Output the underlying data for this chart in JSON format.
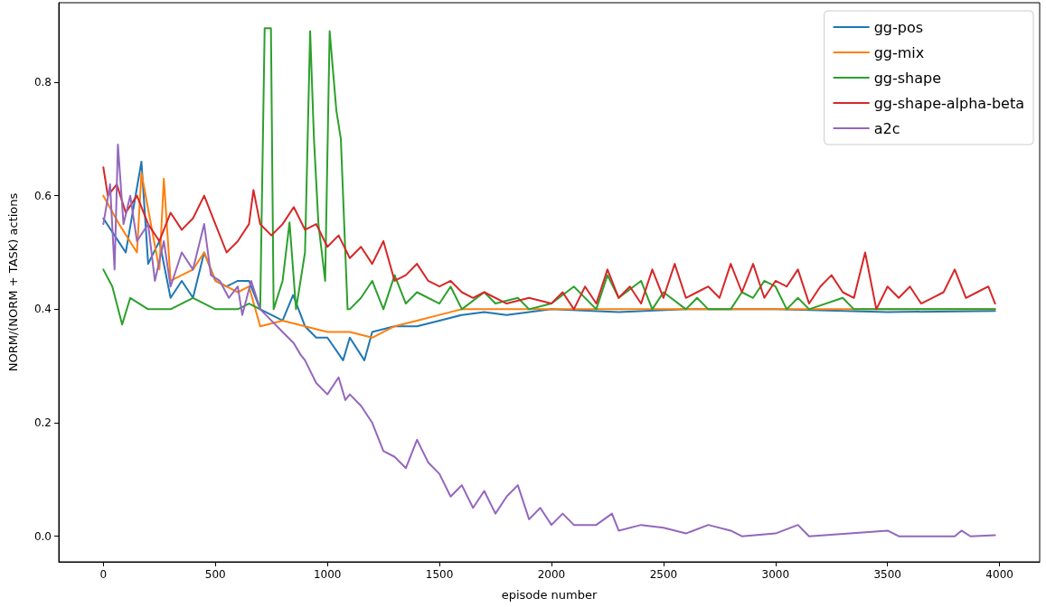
{
  "chart_data": {
    "type": "line",
    "xlabel": "episode number",
    "ylabel": "NORM/(NORM + TASK) actions",
    "xlim": [
      -199,
      4179
    ],
    "ylim": [
      -0.045,
      0.94
    ],
    "xticks": [
      0,
      500,
      1000,
      1500,
      2000,
      2500,
      3000,
      3500,
      4000
    ],
    "yticks": [
      {
        "value": 0,
        "label": "0.0"
      },
      0.2,
      0.4,
      0.6,
      0.8
    ],
    "grid": false,
    "legend": "top right",
    "marker": "none",
    "line_style": "solid",
    "series": [
      {
        "name": "gg-pos",
        "color": "#1f77b4",
        "x": [
          0,
          50,
          100,
          170,
          200,
          250,
          300,
          350,
          400,
          450,
          500,
          550,
          600,
          650,
          700,
          750,
          800,
          847,
          900,
          950,
          1000,
          1070,
          1100,
          1165,
          1200,
          1300,
          1400,
          1500,
          1600,
          1700,
          1800,
          2000,
          2300,
          2600,
          3000,
          3500,
          3980
        ],
        "values": [
          0.56,
          0.53,
          0.5,
          0.66,
          0.48,
          0.52,
          0.42,
          0.45,
          0.42,
          0.5,
          0.45,
          0.44,
          0.45,
          0.45,
          0.4,
          0.39,
          0.38,
          0.425,
          0.37,
          0.35,
          0.35,
          0.31,
          0.35,
          0.31,
          0.36,
          0.37,
          0.37,
          0.38,
          0.39,
          0.395,
          0.39,
          0.4,
          0.395,
          0.4,
          0.4,
          0.395,
          0.397
        ]
      },
      {
        "name": "gg-mix",
        "color": "#ff7f0e",
        "x": [
          0,
          70,
          150,
          170,
          250,
          270,
          300,
          400,
          450,
          500,
          600,
          650,
          700,
          800,
          900,
          1000,
          1100,
          1200,
          1300,
          1400,
          1500,
          1600,
          2000,
          2500,
          3000,
          3500,
          3980
        ],
        "values": [
          0.6,
          0.55,
          0.5,
          0.64,
          0.47,
          0.63,
          0.45,
          0.47,
          0.5,
          0.45,
          0.43,
          0.44,
          0.37,
          0.38,
          0.37,
          0.36,
          0.36,
          0.35,
          0.37,
          0.38,
          0.39,
          0.4,
          0.4,
          0.4,
          0.4,
          0.4,
          0.4
        ]
      },
      {
        "name": "gg-shape",
        "color": "#2ca02c",
        "x": [
          0,
          40,
          84,
          120,
          160,
          200,
          300,
          400,
          500,
          600,
          650,
          700,
          720,
          748,
          760,
          800,
          831,
          860,
          900,
          923,
          940,
          960,
          990,
          1010,
          1040,
          1060,
          1090,
          1100,
          1150,
          1200,
          1250,
          1300,
          1350,
          1400,
          1500,
          1550,
          1600,
          1700,
          1750,
          1850,
          1900,
          2000,
          2100,
          2200,
          2250,
          2300,
          2400,
          2450,
          2500,
          2600,
          2650,
          2700,
          2800,
          2850,
          2900,
          2950,
          3000,
          3050,
          3100,
          3150,
          3300,
          3350,
          3980
        ],
        "values": [
          0.47,
          0.44,
          0.373,
          0.42,
          0.41,
          0.4,
          0.4,
          0.42,
          0.4,
          0.4,
          0.41,
          0.4,
          0.895,
          0.895,
          0.4,
          0.45,
          0.553,
          0.4,
          0.5,
          0.89,
          0.7,
          0.55,
          0.45,
          0.89,
          0.75,
          0.7,
          0.4,
          0.4,
          0.42,
          0.45,
          0.4,
          0.46,
          0.41,
          0.43,
          0.41,
          0.44,
          0.4,
          0.43,
          0.41,
          0.42,
          0.4,
          0.41,
          0.44,
          0.4,
          0.46,
          0.42,
          0.45,
          0.4,
          0.43,
          0.4,
          0.42,
          0.4,
          0.4,
          0.43,
          0.42,
          0.45,
          0.44,
          0.4,
          0.42,
          0.4,
          0.42,
          0.4,
          0.4
        ]
      },
      {
        "name": "gg-shape-alpha-beta",
        "color": "#d62728",
        "x": [
          0,
          20,
          60,
          100,
          150,
          200,
          250,
          300,
          350,
          400,
          450,
          500,
          550,
          600,
          650,
          670,
          700,
          750,
          800,
          850,
          900,
          950,
          1000,
          1050,
          1100,
          1150,
          1200,
          1250,
          1300,
          1350,
          1400,
          1450,
          1500,
          1550,
          1600,
          1650,
          1700,
          1800,
          1900,
          2000,
          2050,
          2100,
          2150,
          2200,
          2250,
          2300,
          2350,
          2400,
          2450,
          2500,
          2550,
          2600,
          2650,
          2700,
          2750,
          2800,
          2850,
          2900,
          2950,
          3000,
          3050,
          3100,
          3150,
          3200,
          3250,
          3300,
          3350,
          3400,
          3450,
          3500,
          3550,
          3600,
          3650,
          3700,
          3750,
          3800,
          3850,
          3900,
          3950,
          3980
        ],
        "values": [
          0.65,
          0.6,
          0.62,
          0.57,
          0.6,
          0.55,
          0.52,
          0.57,
          0.54,
          0.56,
          0.6,
          0.55,
          0.5,
          0.52,
          0.55,
          0.61,
          0.55,
          0.53,
          0.55,
          0.58,
          0.54,
          0.55,
          0.51,
          0.53,
          0.49,
          0.51,
          0.48,
          0.52,
          0.45,
          0.46,
          0.48,
          0.45,
          0.44,
          0.45,
          0.43,
          0.42,
          0.43,
          0.41,
          0.42,
          0.41,
          0.43,
          0.4,
          0.44,
          0.41,
          0.47,
          0.42,
          0.44,
          0.41,
          0.47,
          0.42,
          0.48,
          0.42,
          0.43,
          0.44,
          0.42,
          0.48,
          0.43,
          0.48,
          0.42,
          0.45,
          0.44,
          0.47,
          0.41,
          0.44,
          0.46,
          0.43,
          0.42,
          0.5,
          0.4,
          0.44,
          0.42,
          0.44,
          0.41,
          0.42,
          0.43,
          0.47,
          0.42,
          0.43,
          0.44,
          0.41
        ]
      },
      {
        "name": "a2c",
        "color": "#9467bd",
        "x": [
          0,
          30,
          50,
          65,
          90,
          120,
          150,
          200,
          230,
          270,
          300,
          350,
          400,
          450,
          480,
          520,
          560,
          600,
          620,
          660,
          700,
          750,
          800,
          850,
          880,
          900,
          950,
          1000,
          1050,
          1080,
          1100,
          1150,
          1200,
          1250,
          1300,
          1350,
          1400,
          1450,
          1500,
          1550,
          1600,
          1650,
          1700,
          1750,
          1800,
          1850,
          1900,
          1950,
          2000,
          2050,
          2100,
          2200,
          2270,
          2300,
          2400,
          2500,
          2600,
          2700,
          2800,
          2850,
          3000,
          3100,
          3150,
          3500,
          3550,
          3800,
          3830,
          3870,
          3980
        ],
        "values": [
          0.55,
          0.62,
          0.47,
          0.69,
          0.55,
          0.6,
          0.52,
          0.55,
          0.45,
          0.52,
          0.44,
          0.5,
          0.47,
          0.55,
          0.46,
          0.45,
          0.42,
          0.44,
          0.39,
          0.45,
          0.4,
          0.38,
          0.36,
          0.34,
          0.32,
          0.31,
          0.27,
          0.25,
          0.28,
          0.24,
          0.25,
          0.23,
          0.2,
          0.15,
          0.14,
          0.12,
          0.17,
          0.13,
          0.11,
          0.07,
          0.09,
          0.05,
          0.08,
          0.04,
          0.07,
          0.09,
          0.03,
          0.05,
          0.02,
          0.04,
          0.02,
          0.02,
          0.04,
          0.01,
          0.02,
          0.015,
          0.005,
          0.02,
          0.01,
          0,
          0.005,
          0.02,
          0,
          0.01,
          0,
          0,
          0.01,
          0,
          0.002
        ]
      }
    ]
  }
}
